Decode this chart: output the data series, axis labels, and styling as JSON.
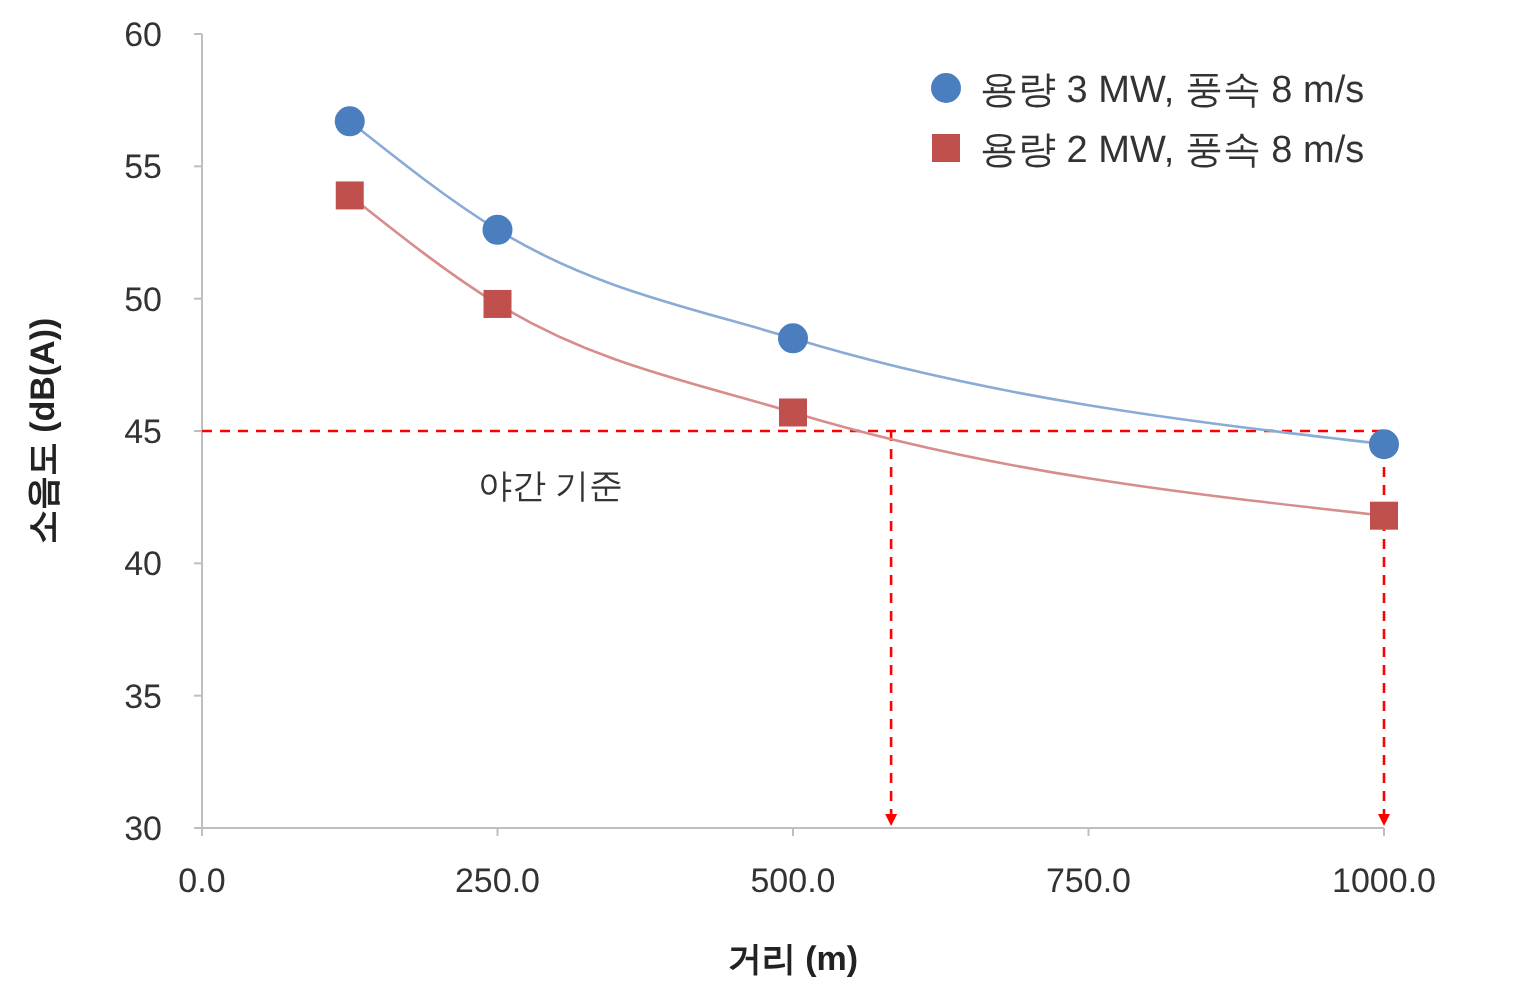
{
  "chart_data": {
    "type": "line",
    "xlabel": "거리 (m)",
    "ylabel": "소음도 (dB(A))",
    "x": [
      125,
      250,
      500,
      1000
    ],
    "series": [
      {
        "name": "용량 3 MW, 풍속 8 m/s",
        "color": "#4a7ebf",
        "marker": "circle",
        "values": [
          56.7,
          52.6,
          48.5,
          44.5
        ]
      },
      {
        "name": "용량 2 MW, 풍속 8 m/s",
        "color": "#c0504d",
        "marker": "square",
        "values": [
          53.9,
          49.8,
          45.7,
          41.8
        ]
      }
    ],
    "xlim": [
      0,
      1000
    ],
    "xticks": [
      {
        "value": 0,
        "label": "0.0"
      },
      {
        "value": 250,
        "label": "250.0"
      },
      {
        "value": 500,
        "label": "500.0"
      },
      {
        "value": 750,
        "label": "750.0"
      },
      {
        "value": 1000,
        "label": "1000.0"
      }
    ],
    "ylim": [
      30,
      60
    ],
    "yticks": [
      30,
      35,
      40,
      45,
      50,
      55,
      60
    ],
    "ref_lines": [
      {
        "axis": "y",
        "value": 45,
        "label": "야간 기준",
        "color": "#ff0000",
        "line_style": "dashed"
      },
      {
        "axis": "x",
        "value": 583,
        "color": "#ff0000",
        "line_style": "dashed"
      },
      {
        "axis": "x",
        "value": 1000,
        "color": "#ff0000",
        "line_style": "dashed"
      }
    ],
    "grid": false,
    "legend": "top right",
    "line_style": "solid"
  }
}
